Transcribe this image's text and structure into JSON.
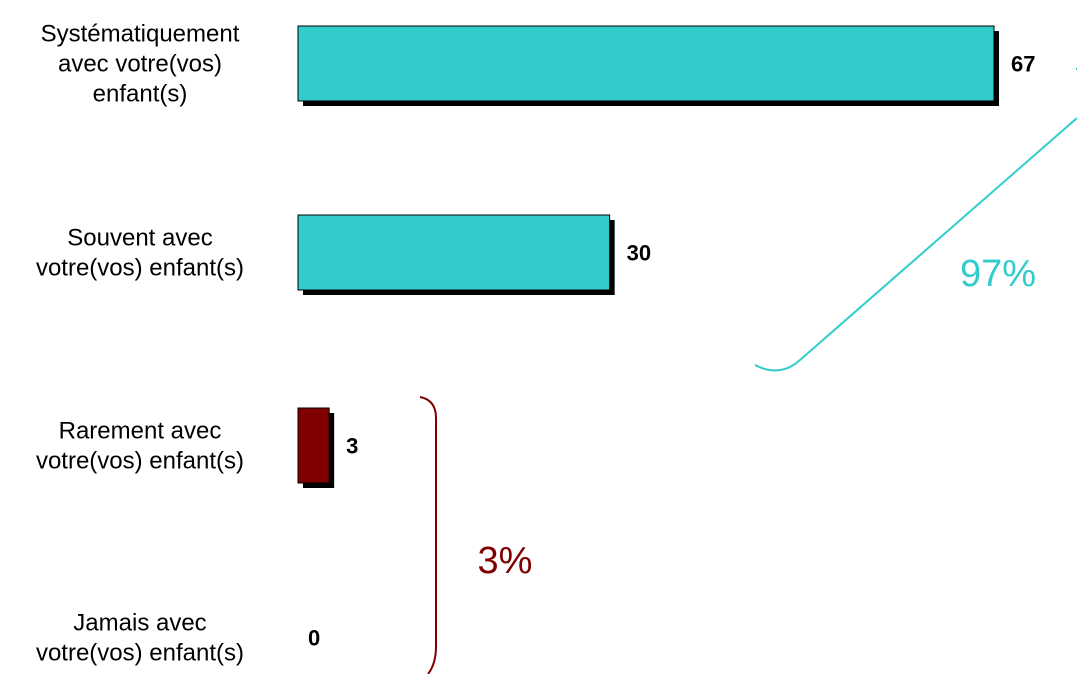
{
  "chart_data": {
    "type": "bar",
    "orientation": "horizontal",
    "categories": [
      [
        "Systématiquement",
        "avec votre(vos)",
        "enfant(s)"
      ],
      [
        "Souvent avec",
        "votre(vos) enfant(s)"
      ],
      [
        "Rarement avec",
        "votre(vos) enfant(s)"
      ],
      [
        "Jamais avec",
        "votre(vos) enfant(s)"
      ]
    ],
    "values": [
      67,
      30,
      3,
      0
    ],
    "value_labels": [
      "67",
      "30",
      "3",
      "0"
    ],
    "bar_colors": [
      "#33CCCC",
      "#33CCCC",
      "#800000",
      "#800000"
    ],
    "xlim": [
      0,
      67
    ],
    "grid": false,
    "legend": "none",
    "annotations": [
      {
        "text": "97%",
        "color": "#33CCCC",
        "groups": [
          0,
          1
        ]
      },
      {
        "text": "3%",
        "color": "#800000",
        "groups": [
          2,
          3
        ]
      }
    ]
  }
}
